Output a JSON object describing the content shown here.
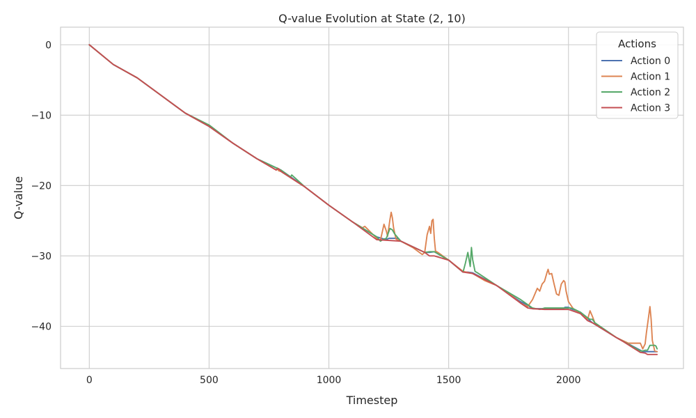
{
  "chart_data": {
    "type": "line",
    "title": "Q-value Evolution at State (2, 10)",
    "xlabel": "Timestep",
    "ylabel": "Q-value",
    "xlim": [
      -120,
      2480
    ],
    "ylim": [
      -46,
      2.5
    ],
    "xticks": [
      0,
      500,
      1000,
      1500,
      2000
    ],
    "yticks": [
      0,
      -10,
      -20,
      -30,
      -40
    ],
    "xtick_labels": [
      "0",
      "500",
      "1000",
      "1500",
      "2000"
    ],
    "ytick_labels": [
      "0",
      "−10",
      "−20",
      "−30",
      "−40"
    ],
    "grid": true,
    "legend": {
      "title": "Actions",
      "placement": "top-right"
    },
    "series": [
      {
        "name": "Action 0",
        "color": "#4c72b0",
        "x": [
          0,
          100,
          200,
          300,
          400,
          500,
          600,
          700,
          800,
          900,
          1000,
          1100,
          1200,
          1240,
          1250,
          1290,
          1300,
          1400,
          1420,
          1440,
          1500,
          1560,
          1580,
          1600,
          1700,
          1800,
          1830,
          1850,
          1980,
          1985,
          2000,
          2010,
          2050,
          2100,
          2200,
          2300,
          2310,
          2340,
          2370
        ],
        "y": [
          0,
          -2.8,
          -4.7,
          -7.2,
          -9.7,
          -11.6,
          -14.0,
          -16.2,
          -17.8,
          -20.2,
          -22.8,
          -25.2,
          -27.3,
          -27.7,
          -27.5,
          -27.5,
          -27.9,
          -29.5,
          -29.5,
          -29.4,
          -30.6,
          -32.3,
          -32.3,
          -32.4,
          -34.2,
          -36.5,
          -37.0,
          -37.5,
          -37.5,
          -37.3,
          -37.3,
          -37.5,
          -38.0,
          -39.5,
          -41.6,
          -43.4,
          -43.6,
          -43.6,
          -43.6
        ]
      },
      {
        "name": "Action 1",
        "color": "#dd8452",
        "x": [
          0,
          100,
          200,
          300,
          400,
          500,
          600,
          700,
          780,
          785,
          790,
          800,
          900,
          1000,
          1100,
          1140,
          1150,
          1200,
          1215,
          1230,
          1240,
          1245,
          1250,
          1255,
          1260,
          1265,
          1270,
          1280,
          1300,
          1350,
          1390,
          1400,
          1410,
          1420,
          1425,
          1430,
          1435,
          1440,
          1445,
          1455,
          1500,
          1560,
          1600,
          1650,
          1700,
          1750,
          1800,
          1830,
          1850,
          1870,
          1880,
          1890,
          1900,
          1910,
          1915,
          1920,
          1930,
          1940,
          1950,
          1960,
          1970,
          1980,
          1985,
          1990,
          2000,
          2020,
          2060,
          2080,
          2090,
          2100,
          2110,
          2150,
          2200,
          2250,
          2300,
          2310,
          2320,
          2325,
          2335,
          2340,
          2345,
          2350,
          2360,
          2370
        ],
        "y": [
          0,
          -2.8,
          -4.7,
          -7.2,
          -9.7,
          -11.6,
          -14.0,
          -16.2,
          -17.8,
          -17.5,
          -17.9,
          -18.0,
          -20.2,
          -22.8,
          -25.2,
          -26.0,
          -25.8,
          -27.5,
          -27.8,
          -25.5,
          -26.5,
          -27.2,
          -26.0,
          -24.8,
          -23.8,
          -24.6,
          -26.0,
          -27.6,
          -27.9,
          -28.8,
          -29.8,
          -29.5,
          -27.0,
          -25.8,
          -26.8,
          -25.0,
          -24.8,
          -27.5,
          -29.3,
          -29.5,
          -30.6,
          -32.2,
          -32.5,
          -33.5,
          -34.2,
          -35.3,
          -36.7,
          -37.2,
          -36.2,
          -34.6,
          -35.0,
          -34.0,
          -33.6,
          -32.4,
          -31.9,
          -32.6,
          -32.5,
          -34.0,
          -35.4,
          -35.6,
          -34.0,
          -33.5,
          -33.7,
          -35.0,
          -36.5,
          -37.5,
          -38.4,
          -39.0,
          -37.8,
          -38.6,
          -39.5,
          -40.5,
          -41.6,
          -42.4,
          -42.4,
          -43.2,
          -42.5,
          -41.0,
          -38.5,
          -37.2,
          -39.0,
          -42.0,
          -43.5,
          -43.6
        ]
      },
      {
        "name": "Action 2",
        "color": "#55a868",
        "x": [
          0,
          100,
          200,
          300,
          400,
          500,
          600,
          700,
          800,
          840,
          845,
          900,
          1000,
          1100,
          1200,
          1215,
          1230,
          1240,
          1255,
          1265,
          1275,
          1300,
          1400,
          1420,
          1440,
          1500,
          1560,
          1570,
          1580,
          1590,
          1595,
          1600,
          1610,
          1620,
          1700,
          1800,
          1850,
          1880,
          1900,
          2000,
          2010,
          2020,
          2050,
          2080,
          2090,
          2100,
          2110,
          2200,
          2300,
          2310,
          2320,
          2330,
          2340,
          2350,
          2360,
          2365,
          2370
        ],
        "y": [
          0,
          -2.8,
          -4.7,
          -7.2,
          -9.7,
          -11.4,
          -14.0,
          -16.2,
          -17.8,
          -18.8,
          -18.5,
          -20.2,
          -22.8,
          -25.2,
          -27.3,
          -27.9,
          -27.6,
          -27.5,
          -26.1,
          -26.3,
          -26.9,
          -27.9,
          -29.5,
          -29.4,
          -29.4,
          -30.6,
          -32.3,
          -31.0,
          -29.5,
          -31.5,
          -28.8,
          -30.5,
          -32.2,
          -32.4,
          -34.2,
          -36.2,
          -37.4,
          -37.6,
          -37.4,
          -37.4,
          -37.4,
          -37.5,
          -38.0,
          -38.8,
          -39.0,
          -39.0,
          -39.5,
          -41.6,
          -43.5,
          -43.5,
          -43.4,
          -43.4,
          -42.7,
          -42.7,
          -42.7,
          -42.8,
          -43.2
        ]
      },
      {
        "name": "Action 3",
        "color": "#c44e52",
        "x": [
          0,
          100,
          200,
          300,
          400,
          500,
          600,
          700,
          780,
          790,
          800,
          900,
          1000,
          1100,
          1200,
          1300,
          1400,
          1420,
          1440,
          1500,
          1560,
          1600,
          1700,
          1800,
          1830,
          1850,
          1900,
          2000,
          2050,
          2080,
          2100,
          2200,
          2230,
          2300,
          2320,
          2330,
          2370
        ],
        "y": [
          0,
          -2.8,
          -4.7,
          -7.2,
          -9.7,
          -11.6,
          -14.0,
          -16.2,
          -17.8,
          -17.6,
          -18.0,
          -20.2,
          -22.8,
          -25.2,
          -27.7,
          -27.9,
          -29.5,
          -30.0,
          -30.0,
          -30.6,
          -32.3,
          -32.5,
          -34.2,
          -36.7,
          -37.4,
          -37.5,
          -37.6,
          -37.6,
          -38.2,
          -39.2,
          -39.5,
          -41.6,
          -42.2,
          -43.7,
          -43.8,
          -44.0,
          -44.0
        ]
      }
    ]
  }
}
